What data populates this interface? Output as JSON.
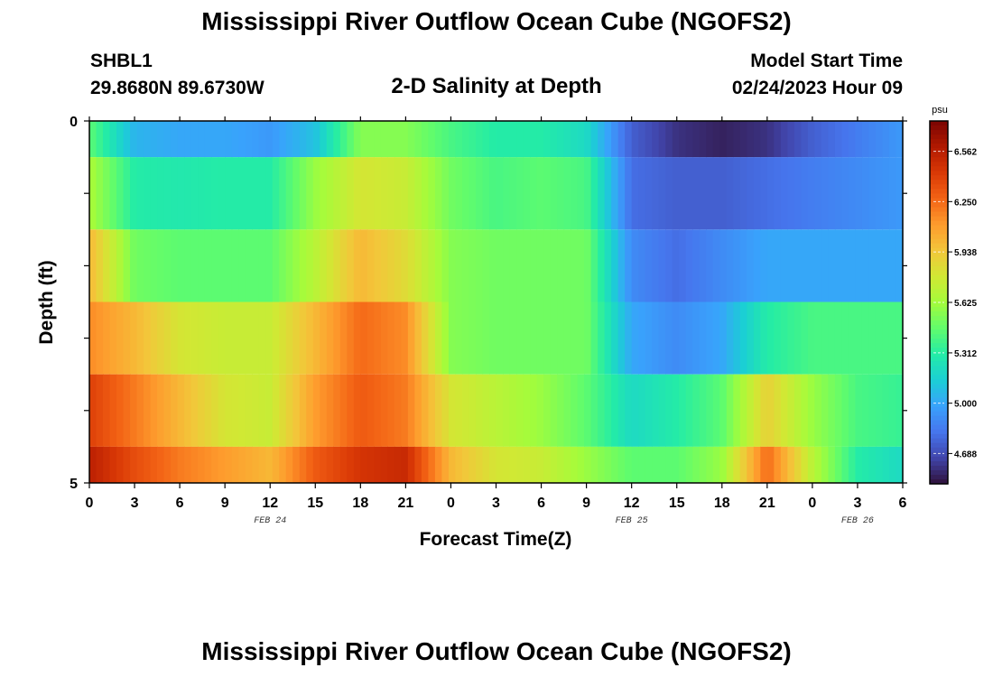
{
  "header": {
    "title": "Mississippi River Outflow Ocean Cube (NGOFS2)",
    "station_id": "SHBL1",
    "coordinates": "29.8680N  89.6730W",
    "subtitle": "2-D Salinity at Depth",
    "model_start_label": "Model Start Time",
    "model_start_value": "02/24/2023 Hour 09"
  },
  "footer": {
    "title": "Mississippi River Outflow Ocean Cube (NGOFS2)"
  },
  "colors": {
    "colormap": [
      "#30123b",
      "#4145ab",
      "#4675ed",
      "#39a2fc",
      "#1bcfd4",
      "#24eca6",
      "#61fc6c",
      "#a4fc3b",
      "#d1e834",
      "#f3c63a",
      "#fe9b2d",
      "#f36315",
      "#d93806",
      "#b11901",
      "#7a0402"
    ]
  },
  "chart_data": {
    "type": "heatmap",
    "title": "2-D Salinity at Depth",
    "xlabel": "Forecast Time(Z)",
    "ylabel": "Depth (ft)",
    "x_tick_labels": [
      "0",
      "3",
      "6",
      "9",
      "12",
      "15",
      "18",
      "21",
      "0",
      "3",
      "6",
      "9",
      "12",
      "15",
      "18",
      "21",
      "0",
      "3",
      "6"
    ],
    "date_labels": [
      {
        "label": "FEB 24",
        "at_tick": 4
      },
      {
        "label": "FEB 25",
        "at_tick": 12
      },
      {
        "label": "FEB 26",
        "at_tick": 17
      }
    ],
    "y_tick_labels": [
      "0",
      "5"
    ],
    "ylim": [
      0,
      5
    ],
    "colorbar": {
      "unit": "psu",
      "range": [
        4.5,
        6.75
      ],
      "tick_values": [
        6.562,
        6.25,
        5.938,
        5.625,
        5.312,
        5.0,
        4.688
      ],
      "tick_labels": [
        "6.562",
        "6.250",
        "5.938",
        "5.625",
        "5.312",
        "5.000",
        "4.688"
      ]
    },
    "forecast_hours": [
      0,
      3,
      6,
      9,
      12,
      15,
      18,
      21,
      24,
      27,
      30,
      33,
      36,
      39,
      42,
      45,
      48,
      51,
      54
    ],
    "layers": [
      {
        "depth_ft": [
          0,
          0.5
        ],
        "values": [
          5.45,
          5.05,
          5.0,
          5.0,
          4.95,
          5.1,
          5.55,
          5.55,
          5.4,
          5.3,
          5.3,
          5.2,
          4.75,
          4.6,
          4.55,
          4.6,
          4.75,
          4.85,
          4.95
        ]
      },
      {
        "depth_ft": [
          0.5,
          1.5
        ],
        "values": [
          5.65,
          5.3,
          5.28,
          5.3,
          5.3,
          5.6,
          5.8,
          5.75,
          5.5,
          5.4,
          5.45,
          5.4,
          4.8,
          4.75,
          4.75,
          4.8,
          4.85,
          4.9,
          4.95
        ]
      },
      {
        "depth_ft": [
          1.5,
          2.5
        ],
        "values": [
          6.0,
          5.5,
          5.45,
          5.45,
          5.45,
          5.7,
          6.0,
          5.85,
          5.55,
          5.5,
          5.5,
          5.5,
          4.9,
          4.8,
          4.9,
          5.0,
          5.0,
          5.0,
          5.0
        ]
      },
      {
        "depth_ft": [
          2.5,
          3.5
        ],
        "values": [
          6.15,
          6.0,
          5.8,
          5.75,
          5.75,
          6.0,
          6.25,
          6.15,
          5.55,
          5.5,
          5.5,
          5.5,
          5.0,
          4.9,
          5.0,
          5.3,
          5.4,
          5.4,
          5.4
        ]
      },
      {
        "depth_ft": [
          3.5,
          4.5
        ],
        "values": [
          6.4,
          6.2,
          6.0,
          5.8,
          5.75,
          6.1,
          6.3,
          6.2,
          5.8,
          5.7,
          5.6,
          5.45,
          5.2,
          5.3,
          5.45,
          5.9,
          5.6,
          5.4,
          5.35
        ]
      },
      {
        "depth_ft": [
          4.5,
          5
        ],
        "values": [
          6.55,
          6.35,
          6.2,
          6.1,
          6.0,
          6.3,
          6.45,
          6.5,
          6.0,
          5.8,
          5.75,
          5.6,
          5.45,
          5.45,
          5.6,
          6.25,
          5.7,
          5.3,
          5.2
        ]
      }
    ]
  }
}
